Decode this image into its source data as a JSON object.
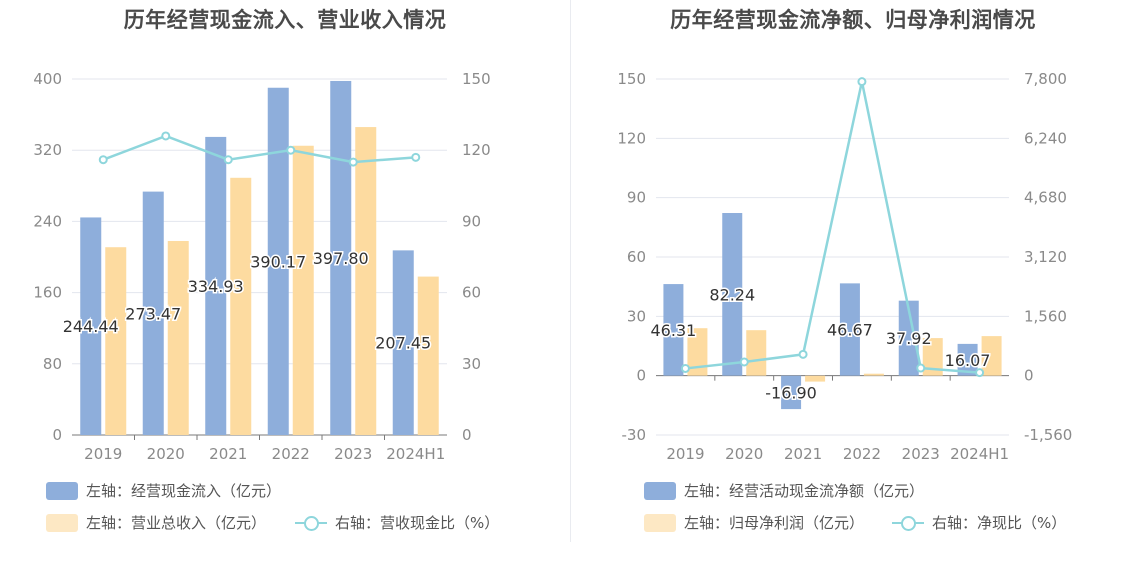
{
  "chart_data": [
    {
      "type": "bar",
      "title": "历年经营现金流入、营业收入情况",
      "categories": [
        "2019",
        "2020",
        "2021",
        "2022",
        "2023",
        "2024H1"
      ],
      "left_axis": {
        "ylim": [
          0,
          400
        ],
        "ticks": [
          "0",
          "80",
          "160",
          "240",
          "320",
          "400"
        ]
      },
      "right_axis": {
        "ylim": [
          0,
          150
        ],
        "ticks": [
          "0",
          "30",
          "60",
          "90",
          "120",
          "150"
        ]
      },
      "series": [
        {
          "name": "左轴：经营现金流入（亿元）",
          "type": "bar",
          "axis": "left",
          "color": "#8eaedb",
          "values": [
            244.44,
            273.47,
            334.93,
            390.17,
            397.8,
            207.45
          ],
          "labels": [
            "244.44",
            "273.47",
            "334.93",
            "390.17",
            "397.80",
            "207.45"
          ]
        },
        {
          "name": "左轴：营业总收入（亿元）",
          "type": "bar",
          "axis": "left",
          "color": "#fddba0",
          "values": [
            211,
            218,
            289,
            325,
            346,
            178
          ]
        },
        {
          "name": "右轴：营收现金比（%）",
          "type": "line",
          "axis": "right",
          "color": "#8ed6dc",
          "values": [
            116,
            126,
            116,
            120,
            115,
            117
          ]
        }
      ],
      "grid": true,
      "legend_position": "bottom-left"
    },
    {
      "type": "bar",
      "title": "历年经营现金流净额、归母净利润情况",
      "categories": [
        "2019",
        "2020",
        "2021",
        "2022",
        "2023",
        "2024H1"
      ],
      "left_axis": {
        "ylim": [
          -30,
          150
        ],
        "ticks": [
          "-30",
          "0",
          "30",
          "60",
          "90",
          "120",
          "150"
        ]
      },
      "right_axis": {
        "ylim": [
          -1560,
          7800
        ],
        "ticks": [
          "-1,560",
          "0",
          "1,560",
          "3,120",
          "4,680",
          "6,240",
          "7,800"
        ]
      },
      "series": [
        {
          "name": "左轴：经营活动现金流净额（亿元）",
          "type": "bar",
          "axis": "left",
          "color": "#8eaedb",
          "values": [
            46.31,
            82.24,
            -16.9,
            46.67,
            37.92,
            16.07
          ],
          "labels": [
            "46.31",
            "82.24",
            "-16.90",
            "46.67",
            "37.92",
            "16.07"
          ]
        },
        {
          "name": "左轴：归母净利润（亿元）",
          "type": "bar",
          "axis": "left",
          "color": "#fddba0",
          "values": [
            24,
            23,
            -3,
            1,
            19,
            20
          ]
        },
        {
          "name": "右轴：净现比（%）",
          "type": "line",
          "axis": "right",
          "color": "#8ed6dc",
          "values": [
            190,
            360,
            560,
            7730,
            200,
            80
          ]
        }
      ],
      "grid": true,
      "legend_position": "bottom-left"
    }
  ]
}
